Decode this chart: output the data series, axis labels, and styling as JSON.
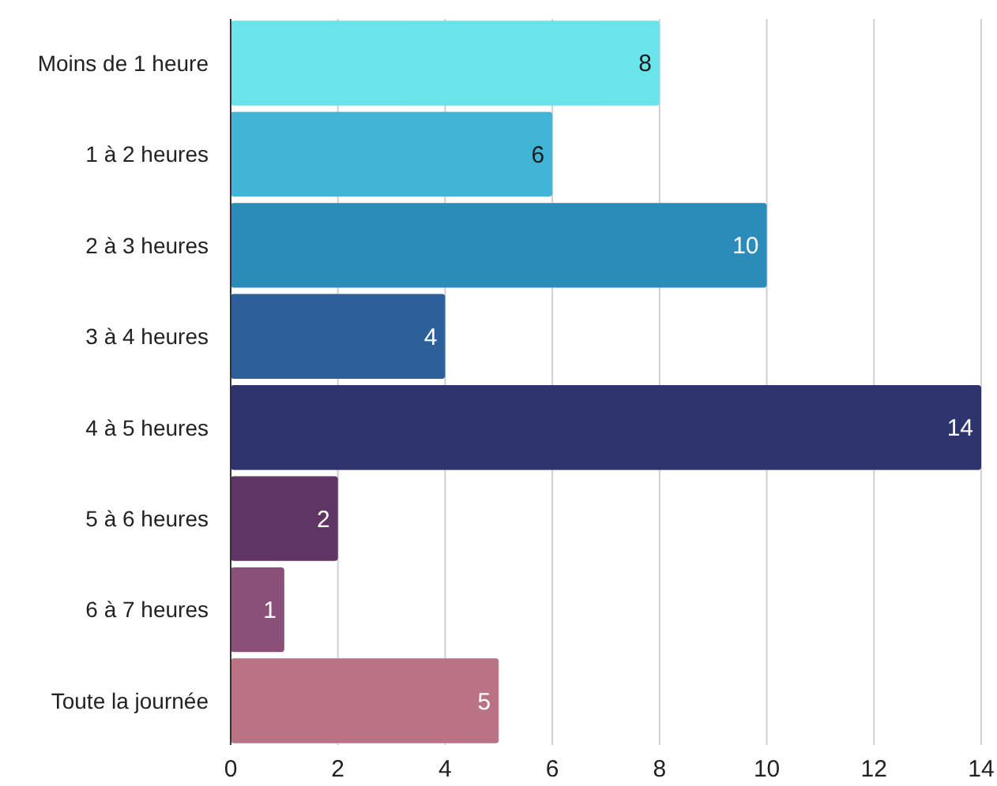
{
  "chart_data": {
    "type": "bar",
    "orientation": "horizontal",
    "categories": [
      "Moins de 1 heure",
      "1 à 2 heures",
      "2 à 3 heures",
      "3 à 4 heures",
      "4 à 5 heures",
      "5 à 6 heures",
      "6 à 7 heures",
      "Toute la journée"
    ],
    "values": [
      8,
      6,
      10,
      4,
      14,
      2,
      1,
      5
    ],
    "colors": [
      "#6ae4ea",
      "#42b5d6",
      "#2b8cba",
      "#2d5f9a",
      "#2e346e",
      "#5e3563",
      "#8a5077",
      "#b97385"
    ],
    "xlim": [
      0,
      14
    ],
    "xticks": [
      0,
      2,
      4,
      6,
      8,
      10,
      12,
      14
    ],
    "grid": "x",
    "data_labels": true
  }
}
